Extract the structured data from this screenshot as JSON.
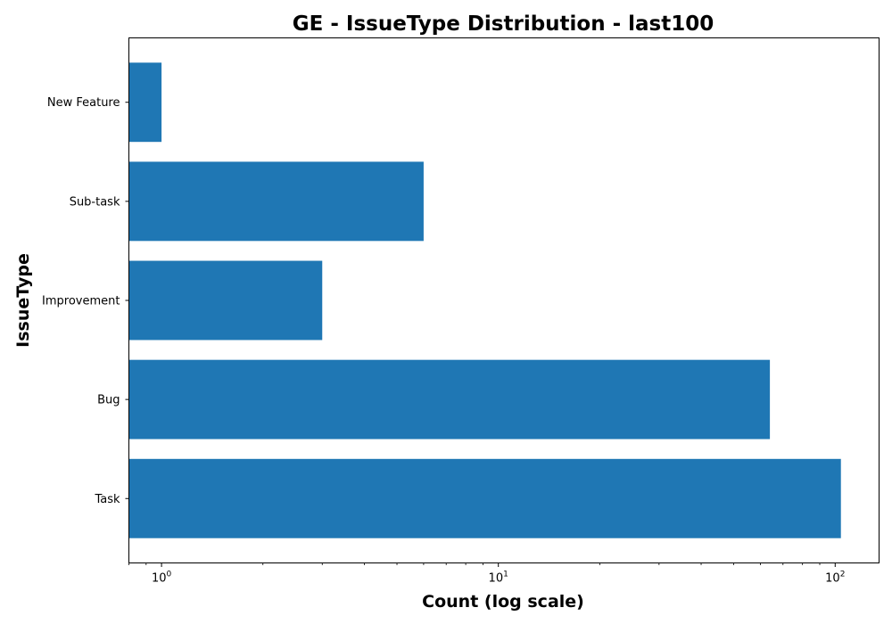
{
  "chart_data": {
    "type": "bar",
    "orientation": "horizontal",
    "title": "GE - IssueType Distribution - last100",
    "xlabel": "Count (log scale)",
    "ylabel": "IssueType",
    "x_scale": "log",
    "xlim": [
      0.8,
      135
    ],
    "x_tick_labels": [
      {
        "value": 1,
        "base": "10",
        "exp": "0"
      },
      {
        "value": 10,
        "base": "10",
        "exp": "1"
      },
      {
        "value": 100,
        "base": "10",
        "exp": "2"
      }
    ],
    "categories": [
      "Task",
      "Bug",
      "Improvement",
      "Sub-task",
      "New Feature"
    ],
    "values": [
      104,
      64,
      3,
      6,
      1
    ],
    "bar_color": "#1f77b4",
    "grid": false,
    "legend": "none"
  }
}
